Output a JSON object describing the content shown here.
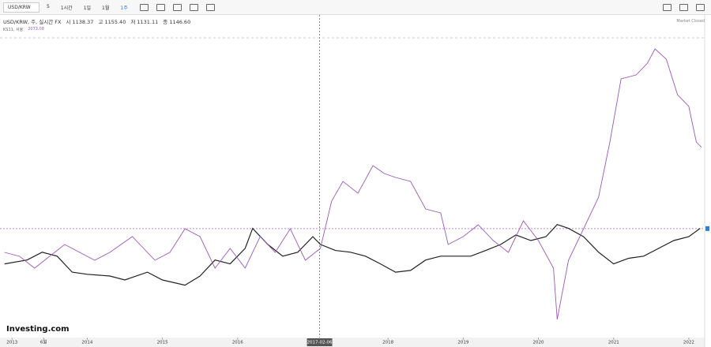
{
  "toolbar": {
    "symbol": "USD/KRW",
    "buttons": [
      "5",
      "1시간",
      "1일",
      "1월",
      "1주"
    ]
  },
  "legend": {
    "title": "USD/KRW, 주, 실시간 FX",
    "ohlc": [
      "시 1138.37",
      "고 1155.40",
      "저 1131.11",
      "종 1146.60"
    ],
    "overlay_name": "KS11, 서울",
    "overlay_value": "2073.08"
  },
  "status": "Market Closed",
  "logo": "Investing.com",
  "chart_data": {
    "type": "line",
    "xlim": [
      2012.84,
      2022.19
    ],
    "xticks": [
      {
        "value": 2013,
        "label": "2013"
      },
      {
        "value": 2013.42,
        "label": "6월"
      },
      {
        "value": 2014,
        "label": "2014"
      },
      {
        "value": 2015,
        "label": "2015"
      },
      {
        "value": 2016,
        "label": "2016"
      },
      {
        "value": 2018,
        "label": "2018"
      },
      {
        "value": 2019,
        "label": "2019"
      },
      {
        "value": 2020,
        "label": "2020"
      },
      {
        "value": 2021,
        "label": "2021"
      },
      {
        "value": 2022,
        "label": "2022"
      }
    ],
    "crosshair": {
      "value": 2017.09,
      "label": "2017-02-06"
    },
    "ylim": [
      895,
      1587
    ],
    "y2lim": [
      1350,
      2490
    ],
    "last_price": 1146.6,
    "series": [
      {
        "name": "USD/KRW",
        "color": "#222222",
        "x": [
          2012.9,
          2013.2,
          2013.4,
          2013.6,
          2013.8,
          2014.0,
          2014.3,
          2014.5,
          2014.8,
          2015.0,
          2015.3,
          2015.5,
          2015.7,
          2015.9,
          2016.1,
          2016.2,
          2016.4,
          2016.6,
          2016.8,
          2017.0,
          2017.1,
          2017.3,
          2017.5,
          2017.7,
          2017.9,
          2018.1,
          2018.3,
          2018.5,
          2018.7,
          2018.9,
          2019.1,
          2019.3,
          2019.5,
          2019.7,
          2019.9,
          2020.1,
          2020.25,
          2020.4,
          2020.6,
          2020.8,
          2021.0,
          2021.2,
          2021.4,
          2021.6,
          2021.8,
          2022.0,
          2022.15
        ],
        "values": [
          1065,
          1074,
          1092,
          1083,
          1046,
          1041,
          1037,
          1028,
          1046,
          1028,
          1016,
          1037,
          1074,
          1065,
          1101,
          1147,
          1110,
          1083,
          1092,
          1128,
          1110,
          1096,
          1092,
          1083,
          1065,
          1046,
          1050,
          1074,
          1083,
          1083,
          1083,
          1096,
          1110,
          1132,
          1119,
          1128,
          1156,
          1147,
          1128,
          1092,
          1065,
          1078,
          1083,
          1101,
          1119,
          1128,
          1147
        ]
      },
      {
        "name": "KS11",
        "color": "#9b59b6",
        "axis": "y2",
        "x": [
          2012.9,
          2013.1,
          2013.3,
          2013.5,
          2013.7,
          2013.9,
          2014.1,
          2014.3,
          2014.6,
          2014.9,
          2015.1,
          2015.3,
          2015.5,
          2015.7,
          2015.9,
          2016.1,
          2016.3,
          2016.5,
          2016.7,
          2016.9,
          2017.1,
          2017.25,
          2017.4,
          2017.6,
          2017.8,
          2017.95,
          2018.1,
          2018.3,
          2018.5,
          2018.7,
          2018.8,
          2019.0,
          2019.2,
          2019.4,
          2019.6,
          2019.8,
          2020.0,
          2020.2,
          2020.25,
          2020.4,
          2020.6,
          2020.8,
          2020.95,
          2021.1,
          2021.3,
          2021.45,
          2021.55,
          2021.7,
          2021.85,
          2022.0,
          2022.1,
          2022.17
        ],
        "values": [
          1674,
          1659,
          1614,
          1659,
          1704,
          1674,
          1644,
          1674,
          1734,
          1644,
          1674,
          1764,
          1734,
          1614,
          1689,
          1614,
          1734,
          1674,
          1764,
          1644,
          1689,
          1869,
          1944,
          1899,
          2004,
          1974,
          1959,
          1944,
          1839,
          1824,
          1704,
          1734,
          1779,
          1719,
          1674,
          1794,
          1719,
          1614,
          1419,
          1644,
          1764,
          1884,
          2094,
          2334,
          2349,
          2394,
          2448,
          2409,
          2274,
          2229,
          2094,
          2073.08
        ]
      }
    ]
  }
}
